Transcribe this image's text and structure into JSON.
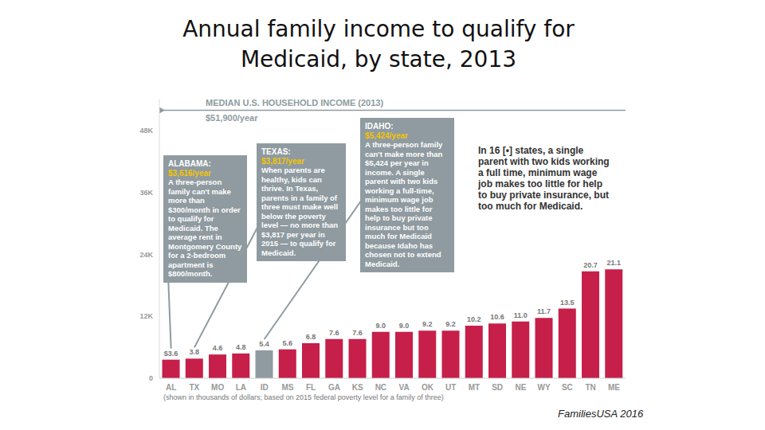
{
  "chart_data": {
    "type": "bar",
    "title": "Annual family income to qualify for Medicaid, by state, 2013",
    "note": "(shown in thousands of dollars; based on 2015 federal poverty level for a family of three)",
    "source": "FamiliesUSA 2016",
    "categories": [
      "AL",
      "TX",
      "MO",
      "LA",
      "ID",
      "MS",
      "FL",
      "GA",
      "KS",
      "NC",
      "VA",
      "OK",
      "UT",
      "MT",
      "SD",
      "NE",
      "WY",
      "SC",
      "TN",
      "ME"
    ],
    "values": [
      3.6,
      3.8,
      4.6,
      4.8,
      5.4,
      5.6,
      6.8,
      7.6,
      7.6,
      9.0,
      9.0,
      9.2,
      9.2,
      10.2,
      10.6,
      11.0,
      11.7,
      13.5,
      20.7,
      21.1
    ],
    "value_labels": [
      "$3.6",
      "3.8",
      "4.6",
      "4.8",
      "5.4",
      "5.6",
      "6.8",
      "7.6",
      "7.6",
      "9.0",
      "9.0",
      "9.2",
      "9.2",
      "10.2",
      "10.6",
      "11.0",
      "11.7",
      "13.5",
      "20.7",
      "21.1"
    ],
    "colors": [
      "#c51f4a",
      "#c51f4a",
      "#c51f4a",
      "#c51f4a",
      "#8f9ba0",
      "#c51f4a",
      "#c51f4a",
      "#c51f4a",
      "#c51f4a",
      "#c51f4a",
      "#c51f4a",
      "#c51f4a",
      "#c51f4a",
      "#c51f4a",
      "#c51f4a",
      "#c51f4a",
      "#c51f4a",
      "#c51f4a",
      "#c51f4a",
      "#c51f4a"
    ],
    "data_labels": true,
    "grid": false,
    "ylim": [
      0,
      54
    ],
    "yticks": [
      0,
      {
        "value": 12,
        "label": "12K"
      },
      {
        "value": 24,
        "label": "24K"
      },
      {
        "value": 36,
        "label": "36K"
      },
      {
        "value": 48,
        "label": "48K"
      }
    ],
    "reference_line": {
      "value": 51.9,
      "label": "MEDIAN U.S. HOUSEHOLD INCOME (2013)",
      "value_label": "$51,900/year"
    },
    "annotations": [
      {
        "category": "AL",
        "heading": "ALABAMA:",
        "amount": "$3,616/year",
        "text": "A three-person family can't make more than $300/month in order to qualify for Medicaid. The average rent in Montgomery County for a 2-bedroom apartment is $800/month."
      },
      {
        "category": "TX",
        "heading": "TEXAS:",
        "amount": "$3,817/year",
        "text": "When parents are healthy, kids can thrive. In Texas, parents in a family of three must make well below the poverty level — no more than $3,817 per year in 2015 — to qualify for Medicaid."
      },
      {
        "category": "ID",
        "heading": "IDAHO:",
        "amount": "$5,424/year",
        "text": "A three-person family can't make more than $5,424 per year in income. A single parent with two kids working a full-time, minimum wage job makes too little for help to buy private insurance but too much for Medicaid because Idaho has chosen not to extend Medicaid."
      }
    ],
    "callout": "In 16 [•] states, a single parent with two kids working a full time, minimum wage job makes too little for help to buy private insurance, but too much for Medicaid."
  }
}
